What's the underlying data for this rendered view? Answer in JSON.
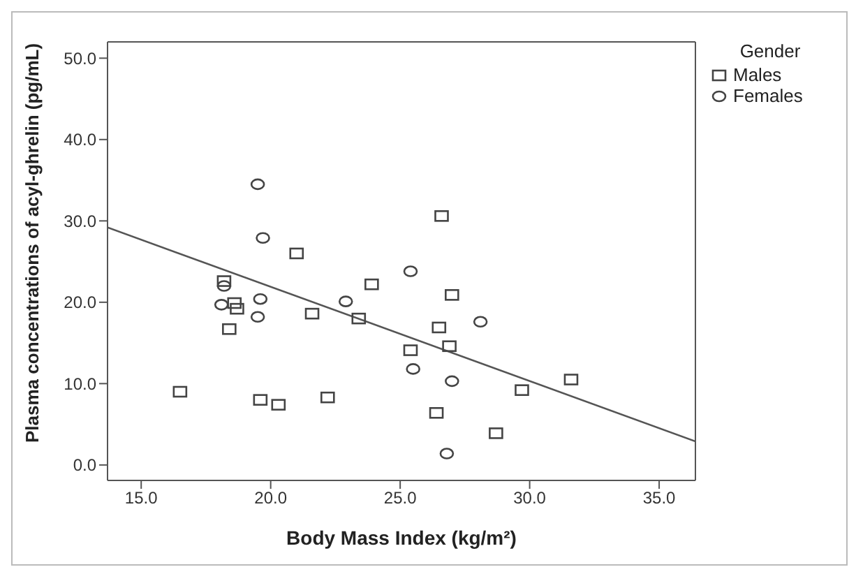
{
  "chart_data": {
    "type": "scatter",
    "xlabel": "Body Mass Index (kg/m²)",
    "ylabel": "Plasma concentrations of acyl-ghrelin (pg/mL)",
    "legend_title": "Gender",
    "legend": "top right",
    "xlim": [
      13.7,
      36.4
    ],
    "xticks": [
      {
        "value": 15,
        "label": "15.0"
      },
      {
        "value": 20,
        "label": "20.0"
      },
      {
        "value": 25,
        "label": "25.0"
      },
      {
        "value": 30,
        "label": "30.0"
      },
      {
        "value": 35,
        "label": "35.0"
      }
    ],
    "ylim": [
      -1.9,
      52
    ],
    "yticks": [
      {
        "value": 0,
        "label": "0.0"
      },
      {
        "value": 10,
        "label": "10.0"
      },
      {
        "value": 20,
        "label": "20.0"
      },
      {
        "value": 30,
        "label": "30.0"
      },
      {
        "value": 40,
        "label": "40.0"
      },
      {
        "value": 50,
        "label": "50.0"
      }
    ],
    "series": [
      {
        "name": "Males",
        "color": "#444444",
        "marker": "square",
        "x": [
          21.0,
          23.9,
          18.2,
          18.6,
          18.7,
          21.6,
          23.4,
          18.4,
          25.4,
          16.5,
          19.6,
          20.3,
          22.2,
          26.6,
          27.0,
          26.5,
          26.9,
          31.6,
          29.7,
          26.4,
          28.7
        ],
        "values": [
          26.0,
          22.2,
          22.6,
          19.9,
          19.2,
          18.6,
          18.0,
          16.7,
          14.1,
          9.0,
          8.0,
          7.4,
          8.3,
          30.6,
          20.9,
          16.9,
          14.6,
          10.5,
          9.2,
          6.4,
          3.9
        ]
      },
      {
        "name": "Females",
        "color": "#444444",
        "marker": "circle",
        "x": [
          19.5,
          19.7,
          25.4,
          18.2,
          18.1,
          19.6,
          19.5,
          22.9,
          25.5,
          28.1,
          27.0,
          26.8
        ],
        "values": [
          34.5,
          27.9,
          23.8,
          22.0,
          19.7,
          20.4,
          18.2,
          20.1,
          11.8,
          17.6,
          10.3,
          1.4
        ]
      },
      {
        "type": "line",
        "color": "#555555",
        "marker": "none",
        "x": [
          13.7,
          36.4
        ],
        "values": [
          29.2,
          2.9
        ]
      }
    ]
  }
}
